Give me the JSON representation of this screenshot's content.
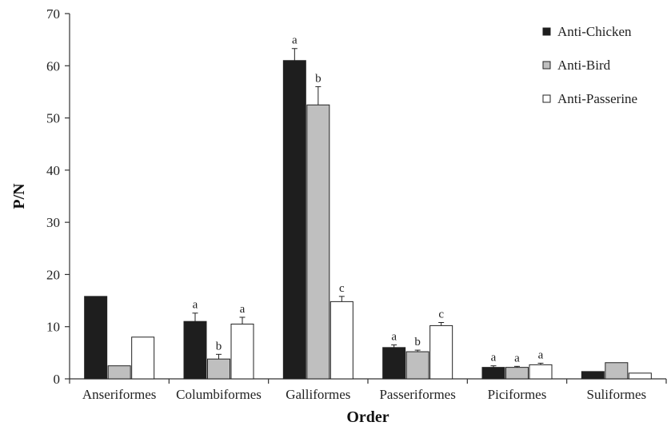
{
  "chart_data": {
    "type": "bar",
    "title": "",
    "xlabel": "Order",
    "ylabel": "P/N",
    "ylim": [
      0,
      70
    ],
    "yticks": [
      0,
      10,
      20,
      30,
      40,
      50,
      60,
      70
    ],
    "grid": false,
    "legend_position": "top-right",
    "categories": [
      "Anseriformes",
      "Columbiformes",
      "Galliformes",
      "Passeriformes",
      "Piciformes",
      "Suliformes"
    ],
    "series": [
      {
        "name": "Anti-Chicken",
        "color": "#1e1e1e",
        "values": [
          15.8,
          11.0,
          61.0,
          6.0,
          2.2,
          1.4
        ],
        "errors": [
          null,
          1.6,
          2.3,
          0.5,
          0.3,
          null
        ],
        "labels": [
          "",
          "a",
          "a",
          "a",
          "a",
          ""
        ]
      },
      {
        "name": "Anti-Bird",
        "color": "#bfbfbf",
        "values": [
          2.5,
          3.8,
          52.5,
          5.2,
          2.2,
          3.1
        ],
        "errors": [
          null,
          0.9,
          3.5,
          0.3,
          0.2,
          null
        ],
        "labels": [
          "",
          "b",
          "b",
          "b",
          "a",
          ""
        ]
      },
      {
        "name": "Anti-Passerine",
        "color": "#ffffff",
        "values": [
          8.0,
          10.5,
          14.8,
          10.2,
          2.7,
          1.1
        ],
        "errors": [
          null,
          1.3,
          1.0,
          0.6,
          0.3,
          null
        ],
        "labels": [
          "",
          "a",
          "c",
          "c",
          "a",
          ""
        ]
      }
    ]
  }
}
